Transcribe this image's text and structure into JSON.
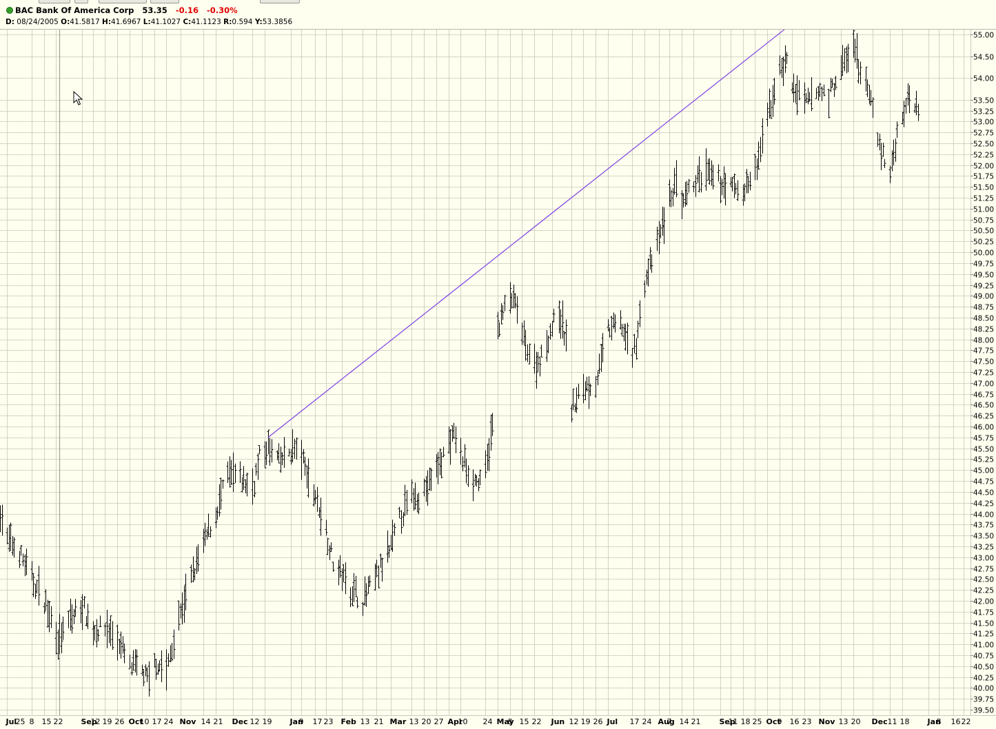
{
  "header": {
    "symbol": "BAC",
    "name": "Bank Of America Corp",
    "last": "53.35",
    "change": "-0.16",
    "change_pct": "-0.30%",
    "ohlc": {
      "date_label": "D:",
      "date": "08/24/2005",
      "open_label": "O:",
      "open": "41.5817",
      "high_label": "H:",
      "high": "41.6967",
      "low_label": "L:",
      "low": "41.1027",
      "close_label": "C:",
      "close": "41.1123",
      "range_label": "R:",
      "range": "0.594",
      "y_label": "Y:",
      "y": "53.3856"
    }
  },
  "colors": {
    "background": "#fffff0",
    "grid": "#c8c8b8",
    "bars": "#000000",
    "trendline": "#7b3fe4",
    "negative": "#e00000"
  },
  "icons": {
    "status": "green-status-dot-icon",
    "cursor": "mouse-pointer-icon"
  },
  "chart_data": {
    "type": "bar",
    "style": "ohlc",
    "grid": true,
    "y_axis_side": "right",
    "ylim": [
      39.375,
      55.125
    ],
    "y_ticks": [
      "55.00",
      "54.50",
      "54.00",
      "53.50",
      "53.25",
      "53.00",
      "52.75",
      "52.50",
      "52.25",
      "52.00",
      "51.75",
      "51.50",
      "51.25",
      "51.00",
      "50.75",
      "50.50",
      "50.25",
      "50.00",
      "49.75",
      "49.50",
      "49.25",
      "49.00",
      "48.75",
      "48.50",
      "48.25",
      "48.00",
      "47.75",
      "47.50",
      "47.25",
      "47.00",
      "46.75",
      "46.50",
      "46.25",
      "46.00",
      "45.75",
      "45.50",
      "45.25",
      "45.00",
      "44.75",
      "44.50",
      "44.25",
      "44.00",
      "43.75",
      "43.50",
      "43.25",
      "43.00",
      "42.75",
      "42.50",
      "42.25",
      "42.00",
      "41.75",
      "41.50",
      "41.25",
      "41.00",
      "40.75",
      "40.50",
      "40.25",
      "40.00",
      "39.75",
      "39.50"
    ],
    "x_labels": [
      {
        "text": "Jul",
        "bold": true,
        "date": "2005-07-25"
      },
      {
        "text": "25",
        "date": "2005-07-25"
      },
      {
        "text": "8",
        "date": "2005-08-08"
      },
      {
        "text": "15",
        "date": "2005-08-15"
      },
      {
        "text": "22",
        "date": "2005-08-22"
      },
      {
        "text": "Sep",
        "bold": true,
        "date": "2005-09-06"
      },
      {
        "text": "12",
        "date": "2005-09-12"
      },
      {
        "text": "19",
        "date": "2005-09-19"
      },
      {
        "text": "26",
        "date": "2005-09-26"
      },
      {
        "text": "Oct",
        "bold": true,
        "date": "2005-10-03"
      },
      {
        "text": "10",
        "date": "2005-10-10"
      },
      {
        "text": "17",
        "date": "2005-10-17"
      },
      {
        "text": "24",
        "date": "2005-10-24"
      },
      {
        "text": "Nov",
        "bold": true,
        "date": "2005-11-01"
      },
      {
        "text": "14",
        "date": "2005-11-14"
      },
      {
        "text": "21",
        "date": "2005-11-21"
      },
      {
        "text": "Dec",
        "bold": true,
        "date": "2005-12-01"
      },
      {
        "text": "12",
        "date": "2005-12-12"
      },
      {
        "text": "19",
        "date": "2005-12-19"
      },
      {
        "text": "Jan",
        "bold": true,
        "date": "2006-01-03"
      },
      {
        "text": "9",
        "date": "2006-01-09"
      },
      {
        "text": "17",
        "date": "2006-01-17"
      },
      {
        "text": "23",
        "date": "2006-01-23"
      },
      {
        "text": "Feb",
        "bold": true,
        "date": "2006-02-01"
      },
      {
        "text": "13",
        "date": "2006-02-13"
      },
      {
        "text": "21",
        "date": "2006-02-21"
      },
      {
        "text": "Mar",
        "bold": true,
        "date": "2006-03-01"
      },
      {
        "text": "13",
        "date": "2006-03-13"
      },
      {
        "text": "20",
        "date": "2006-03-20"
      },
      {
        "text": "27",
        "date": "2006-03-27"
      },
      {
        "text": "Apr",
        "bold": true,
        "date": "2006-04-03"
      },
      {
        "text": "10",
        "date": "2006-04-10"
      },
      {
        "text": "24",
        "date": "2006-04-24"
      },
      {
        "text": "May",
        "bold": true,
        "date": "2006-05-01"
      },
      {
        "text": "8",
        "date": "2006-05-08"
      },
      {
        "text": "15",
        "date": "2006-05-15"
      },
      {
        "text": "22",
        "date": "2006-05-22"
      },
      {
        "text": "Jun",
        "bold": true,
        "date": "2006-06-01"
      },
      {
        "text": "12",
        "date": "2006-06-12"
      },
      {
        "text": "19",
        "date": "2006-06-19"
      },
      {
        "text": "26",
        "date": "2006-06-26"
      },
      {
        "text": "Jul",
        "bold": true,
        "date": "2006-07-03"
      },
      {
        "text": "17",
        "date": "2006-07-17"
      },
      {
        "text": "24",
        "date": "2006-07-24"
      },
      {
        "text": "Aug",
        "bold": true,
        "date": "2006-08-01"
      },
      {
        "text": "7",
        "date": "2006-08-07"
      },
      {
        "text": "14",
        "date": "2006-08-14"
      },
      {
        "text": "21",
        "date": "2006-08-21"
      },
      {
        "text": "Sep",
        "bold": true,
        "date": "2006-09-05"
      },
      {
        "text": "11",
        "date": "2006-09-11"
      },
      {
        "text": "18",
        "date": "2006-09-18"
      },
      {
        "text": "25",
        "date": "2006-09-25"
      },
      {
        "text": "Oct",
        "bold": true,
        "date": "2006-10-02"
      },
      {
        "text": "9",
        "date": "2006-10-09"
      },
      {
        "text": "16",
        "date": "2006-10-16"
      },
      {
        "text": "23",
        "date": "2006-10-23"
      },
      {
        "text": "Nov",
        "bold": true,
        "date": "2006-11-01"
      },
      {
        "text": "13",
        "date": "2006-11-13"
      },
      {
        "text": "20",
        "date": "2006-11-20"
      },
      {
        "text": "Dec",
        "bold": true,
        "date": "2006-12-01"
      },
      {
        "text": "11",
        "date": "2006-12-11"
      },
      {
        "text": "18",
        "date": "2006-12-18"
      },
      {
        "text": "Jan",
        "bold": true,
        "date": "2007-01-02"
      },
      {
        "text": "8",
        "date": "2007-01-08"
      },
      {
        "text": "16",
        "date": "2007-01-16"
      },
      {
        "text": "22",
        "date": "2007-01-22"
      }
    ],
    "x_range": [
      "2005-07-21",
      "2007-01-26"
    ],
    "path": [
      [
        "2005-07-21",
        44.05
      ],
      [
        "2005-07-25",
        43.4
      ],
      [
        "2005-08-01",
        43.1
      ],
      [
        "2005-08-08",
        42.5
      ],
      [
        "2005-08-15",
        42.0
      ],
      [
        "2005-08-19",
        41.6
      ],
      [
        "2005-08-24",
        41.1
      ],
      [
        "2005-08-29",
        41.5
      ],
      [
        "2005-09-06",
        41.9
      ],
      [
        "2005-09-12",
        41.3
      ],
      [
        "2005-09-19",
        41.4
      ],
      [
        "2005-09-26",
        41.1
      ],
      [
        "2005-10-03",
        40.5
      ],
      [
        "2005-10-10",
        40.4
      ],
      [
        "2005-10-14",
        40.1
      ],
      [
        "2005-10-17",
        40.6
      ],
      [
        "2005-10-24",
        40.4
      ],
      [
        "2005-10-31",
        41.6
      ],
      [
        "2005-11-07",
        42.5
      ],
      [
        "2005-11-14",
        43.3
      ],
      [
        "2005-11-21",
        44.0
      ],
      [
        "2005-11-28",
        44.9
      ],
      [
        "2005-12-05",
        44.8
      ],
      [
        "2005-12-12",
        44.6
      ],
      [
        "2005-12-16",
        45.3
      ],
      [
        "2005-12-21",
        45.5
      ],
      [
        "2005-12-28",
        45.2
      ],
      [
        "2006-01-04",
        45.5
      ],
      [
        "2006-01-09",
        45.3
      ],
      [
        "2006-01-13",
        44.8
      ],
      [
        "2006-01-17",
        44.4
      ],
      [
        "2006-01-23",
        43.6
      ],
      [
        "2006-01-27",
        42.9
      ],
      [
        "2006-02-01",
        42.6
      ],
      [
        "2006-02-06",
        42.3
      ],
      [
        "2006-02-13",
        42.0
      ],
      [
        "2006-02-21",
        42.6
      ],
      [
        "2006-02-28",
        43.1
      ],
      [
        "2006-03-06",
        43.9
      ],
      [
        "2006-03-13",
        44.4
      ],
      [
        "2006-03-20",
        44.5
      ],
      [
        "2006-03-27",
        45.0
      ],
      [
        "2006-04-03",
        45.6
      ],
      [
        "2006-04-07",
        45.8
      ],
      [
        "2006-04-10",
        45.3
      ],
      [
        "2006-04-17",
        44.8
      ],
      [
        "2006-04-21",
        44.7
      ],
      [
        "2006-04-24",
        45.0
      ],
      [
        "2006-04-28",
        46.0
      ],
      [
        "2006-05-01",
        48.3
      ],
      [
        "2006-05-08",
        49.0
      ],
      [
        "2006-05-12",
        48.7
      ],
      [
        "2006-05-15",
        48.1
      ],
      [
        "2006-05-22",
        47.4
      ],
      [
        "2006-05-26",
        47.6
      ],
      [
        "2006-06-01",
        48.3
      ],
      [
        "2006-06-05",
        48.6
      ],
      [
        "2006-06-09",
        48.0
      ],
      [
        "2006-06-12",
        46.4
      ],
      [
        "2006-06-19",
        46.9
      ],
      [
        "2006-06-26",
        47.0
      ],
      [
        "2006-07-03",
        48.2
      ],
      [
        "2006-07-10",
        48.4
      ],
      [
        "2006-07-17",
        47.6
      ],
      [
        "2006-07-20",
        48.2
      ],
      [
        "2006-07-24",
        49.3
      ],
      [
        "2006-08-01",
        50.3
      ],
      [
        "2006-08-07",
        51.2
      ],
      [
        "2006-08-11",
        51.6
      ],
      [
        "2006-08-14",
        51.0
      ],
      [
        "2006-08-21",
        51.6
      ],
      [
        "2006-08-28",
        51.8
      ],
      [
        "2006-09-05",
        51.6
      ],
      [
        "2006-09-11",
        51.5
      ],
      [
        "2006-09-18",
        51.4
      ],
      [
        "2006-09-25",
        51.8
      ],
      [
        "2006-10-02",
        53.1
      ],
      [
        "2006-10-09",
        54.2
      ],
      [
        "2006-10-13",
        54.4
      ],
      [
        "2006-10-16",
        53.8
      ],
      [
        "2006-10-23",
        53.4
      ],
      [
        "2006-11-01",
        53.7
      ],
      [
        "2006-11-06",
        53.6
      ],
      [
        "2006-11-13",
        54.2
      ],
      [
        "2006-11-20",
        54.7
      ],
      [
        "2006-11-24",
        54.2
      ],
      [
        "2006-12-01",
        53.3
      ],
      [
        "2006-12-06",
        52.3
      ],
      [
        "2006-12-11",
        51.8
      ],
      [
        "2006-12-15",
        52.7
      ],
      [
        "2006-12-18",
        53.2
      ],
      [
        "2006-12-22",
        53.6
      ],
      [
        "2006-12-27",
        53.35
      ]
    ],
    "trendline": {
      "color": "#7b3fe4",
      "start": [
        "2005-12-21",
        45.75
      ],
      "end": [
        "2006-10-12",
        55.12
      ]
    }
  }
}
